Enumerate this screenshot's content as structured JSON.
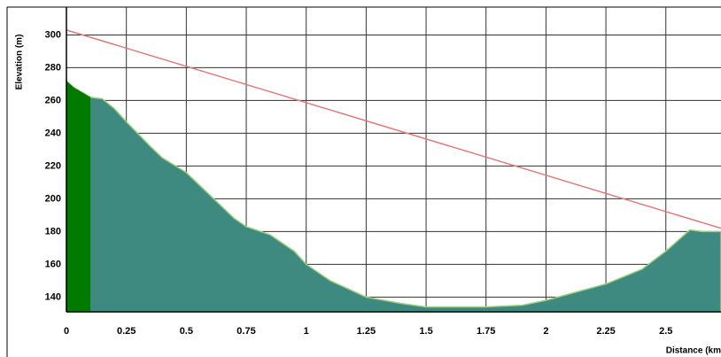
{
  "chart_data": {
    "type": "area",
    "y_label": "Elevation (m)",
    "x_label": "Distance (km",
    "x": [
      0,
      0.03,
      0.1,
      0.15,
      0.2,
      0.25,
      0.35,
      0.4,
      0.5,
      0.6,
      0.7,
      0.75,
      0.85,
      0.95,
      1.0,
      1.1,
      1.25,
      1.4,
      1.5,
      1.75,
      1.9,
      2.0,
      2.1,
      2.25,
      2.4,
      2.5,
      2.6,
      2.65,
      2.73
    ],
    "series": [
      {
        "color": "#3f8a80",
        "values": [
          272,
          268,
          262,
          261,
          255,
          247,
          232,
          225,
          216,
          202,
          188,
          183,
          178,
          168,
          160,
          150,
          140,
          136,
          134,
          134,
          135,
          138,
          142,
          148,
          157,
          168,
          181,
          180,
          180
        ]
      }
    ],
    "highlight": {
      "xrange": [
        0,
        0.1
      ],
      "color": "#007a00"
    },
    "reference_line": {
      "x": [
        0,
        2.73
      ],
      "values": [
        303,
        182
      ],
      "color": "#e07a7a"
    },
    "xlim": [
      0,
      2.73
    ],
    "ylim": [
      131,
      317
    ],
    "xticks": [
      0,
      0.25,
      0.5,
      0.75,
      1,
      1.25,
      1.5,
      1.75,
      2,
      2.25,
      2.5
    ],
    "yticks": [
      140,
      160,
      180,
      200,
      220,
      240,
      260,
      280,
      300
    ],
    "grid": true
  }
}
